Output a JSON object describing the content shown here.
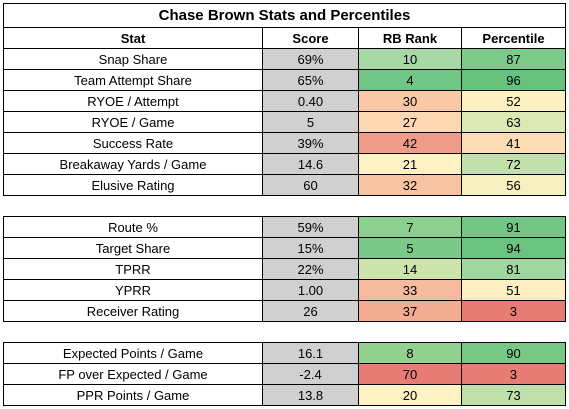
{
  "title": "Chase Brown Stats and Percentiles",
  "headers": [
    "Stat",
    "Score",
    "RB Rank",
    "Percentile"
  ],
  "sections": [
    [
      {
        "stat": "Snap Share",
        "score": "69%",
        "rank": "10",
        "rank_color": "#a7d8a5",
        "pct": "87",
        "pct_color": "#7dcb8a"
      },
      {
        "stat": "Team Attempt Share",
        "score": "65%",
        "rank": "4",
        "rank_color": "#71c585",
        "pct": "96",
        "pct_color": "#66c27c"
      },
      {
        "stat": "RYOE / Attempt",
        "score": "0.40",
        "rank": "30",
        "rank_color": "#f9c9a7",
        "pct": "52",
        "pct_color": "#fdf0c1"
      },
      {
        "stat": "RYOE / Game",
        "score": "5",
        "rank": "27",
        "rank_color": "#fbd8b1",
        "pct": "63",
        "pct_color": "#dde9b4"
      },
      {
        "stat": "Success Rate",
        "score": "39%",
        "rank": "42",
        "rank_color": "#ef9c88",
        "pct": "41",
        "pct_color": "#fbdcb4"
      },
      {
        "stat": "Breakaway Yards / Game",
        "score": "14.6",
        "rank": "21",
        "rank_color": "#fef2c4",
        "pct": "72",
        "pct_color": "#c2e0ac"
      },
      {
        "stat": "Elusive Rating",
        "score": "60",
        "rank": "32",
        "rank_color": "#f8c3a2",
        "pct": "56",
        "pct_color": "#f6efc0"
      }
    ],
    [
      {
        "stat": "Route %",
        "score": "59%",
        "rank": "7",
        "rank_color": "#8ccf8e",
        "pct": "91",
        "pct_color": "#72c683"
      },
      {
        "stat": "Target Share",
        "score": "15%",
        "rank": "5",
        "rank_color": "#7bc988",
        "pct": "94",
        "pct_color": "#6ac47f"
      },
      {
        "stat": "TPRR",
        "score": "22%",
        "rank": "14",
        "rank_color": "#cde4ad",
        "pct": "81",
        "pct_color": "#a0d69f"
      },
      {
        "stat": "YPRR",
        "score": "1.00",
        "rank": "33",
        "rank_color": "#f6bb9e",
        "pct": "51",
        "pct_color": "#fdefc2"
      },
      {
        "stat": "Receiver Rating",
        "score": "26",
        "rank": "37",
        "rank_color": "#f3ab92",
        "pct": "3",
        "pct_color": "#e67c73"
      }
    ],
    [
      {
        "stat": "Expected Points / Game",
        "score": "16.1",
        "rank": "8",
        "rank_color": "#93d190",
        "pct": "90",
        "pct_color": "#78c985"
      },
      {
        "stat": "FP over Expected / Game",
        "score": "-2.4",
        "rank": "70",
        "rank_color": "#e67c73",
        "pct": "3",
        "pct_color": "#e67c73"
      },
      {
        "stat": "PPR Points / Game",
        "score": "13.8",
        "rank": "20",
        "rank_color": "#fdf2c4",
        "pct": "73",
        "pct_color": "#bfe0aa"
      }
    ]
  ]
}
